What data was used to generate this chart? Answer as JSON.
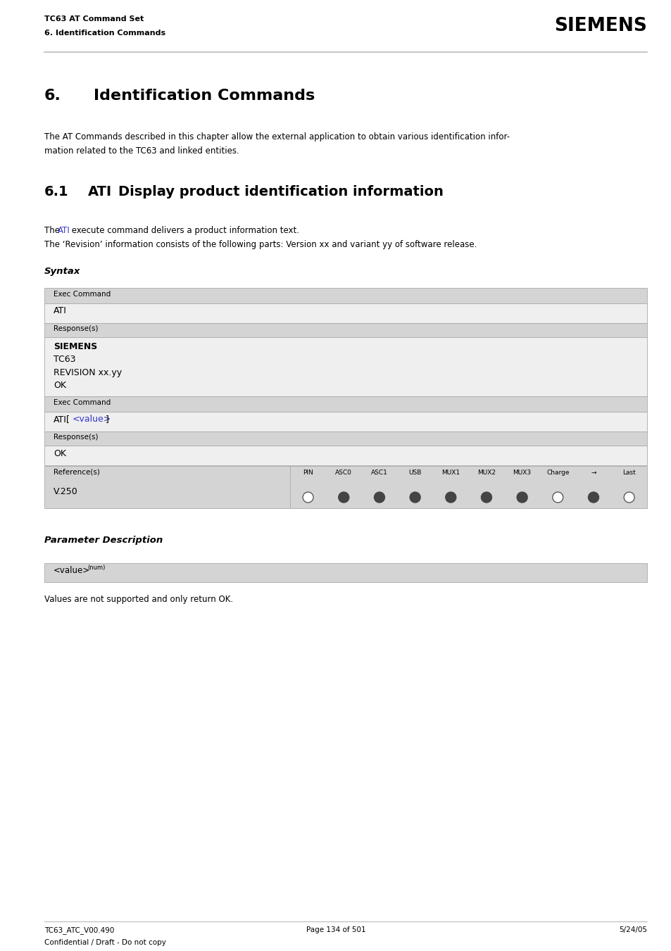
{
  "page_width": 9.54,
  "page_height": 13.51,
  "bg_color": "#ffffff",
  "header_line1": "TC63 AT Command Set",
  "header_line2": "6. Identification Commands",
  "header_siemens": "SIEMENS",
  "section_number": "6.",
  "section_title": "Identification Commands",
  "section_desc_line1": "The AT Commands described in this chapter allow the external application to obtain various identification infor-",
  "section_desc_line2": "mation related to the TC63 and linked entities.",
  "subsection_number": "6.1",
  "subsection_ati": "ATI",
  "subsection_title": "Display product identification information",
  "desc_line1_before": "The ",
  "desc_ati_link": "ATI",
  "desc_line1_after": " execute command delivers a product information text.",
  "desc_line2": "The ‘Revision’ information consists of the following parts: Version xx and variant yy of software release.",
  "syntax_label": "Syntax",
  "exec_cmd_label": "Exec Command",
  "exec_cmd1": "ATI",
  "response_label": "Response(s)",
  "response1_lines": [
    "SIEMENS",
    "TC63",
    "REVISION xx.yy",
    "OK"
  ],
  "response1_bold": [
    true,
    false,
    false,
    false
  ],
  "exec_cmd2_before": "ATI[",
  "exec_cmd2_link": "<value>",
  "exec_cmd2_after": "]",
  "response2": "OK",
  "ref_label": "Reference(s)",
  "ref_value": "V.250",
  "pin_headers": [
    "PIN",
    "ASC0",
    "ASC1",
    "USB",
    "MUX1",
    "MUX2",
    "MUX3",
    "Charge",
    "→",
    "Last"
  ],
  "pin_filled": [
    false,
    true,
    true,
    true,
    true,
    true,
    true,
    false,
    true,
    false
  ],
  "param_desc_label": "Parameter Description",
  "param_value_label": "<value>",
  "param_value_superscript": "(num)",
  "param_value_desc": "Values are not supported and only return OK.",
  "footer_left1": "TC63_ATC_V00.490",
  "footer_left2": "Confidential / Draft - Do not copy",
  "footer_center": "Page 134 of 501",
  "footer_right": "5/24/05",
  "gray_header": "#d4d4d4",
  "gray_content": "#efefef",
  "blue_link": "#3333cc",
  "text_color": "#000000"
}
